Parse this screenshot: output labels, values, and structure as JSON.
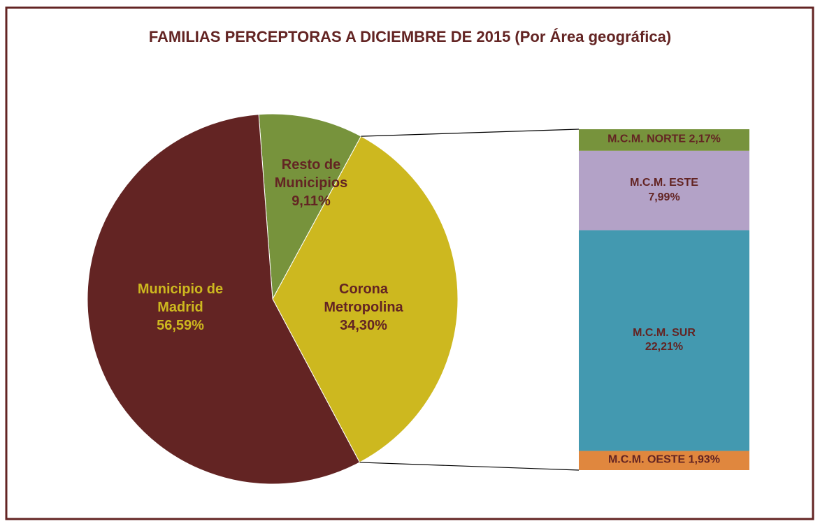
{
  "chart_data": {
    "type": "pie-of-bar",
    "title": "FAMILIAS PERCEPTORAS  A DICIEMBRE DE 2015 (Por Área geográfica)",
    "pie": {
      "categories": [
        "Resto de Municipios",
        "Corona Metropolina",
        "Municipio de Madrid"
      ],
      "values": [
        9.11,
        34.3,
        56.59
      ],
      "value_labels": [
        "9,11%",
        "34,30%",
        "56,59%"
      ],
      "colors": [
        "#77933c",
        "#cdb81f",
        "#632423"
      ],
      "label_colors": [
        "#632423",
        "#632423",
        "#cdb81f"
      ]
    },
    "bar": {
      "categories": [
        "M.C.M. NORTE",
        "M.C.M. ESTE",
        "M.C.M. SUR",
        "M.C.M. OESTE"
      ],
      "values": [
        2.17,
        7.99,
        22.21,
        1.93
      ],
      "value_labels": [
        "2,17%",
        "7,99%",
        "22,21%",
        "1,93%"
      ],
      "colors": [
        "#77933c",
        "#b3a2c7",
        "#4399b0",
        "#e0873e"
      ],
      "label_color": "#632423"
    }
  }
}
